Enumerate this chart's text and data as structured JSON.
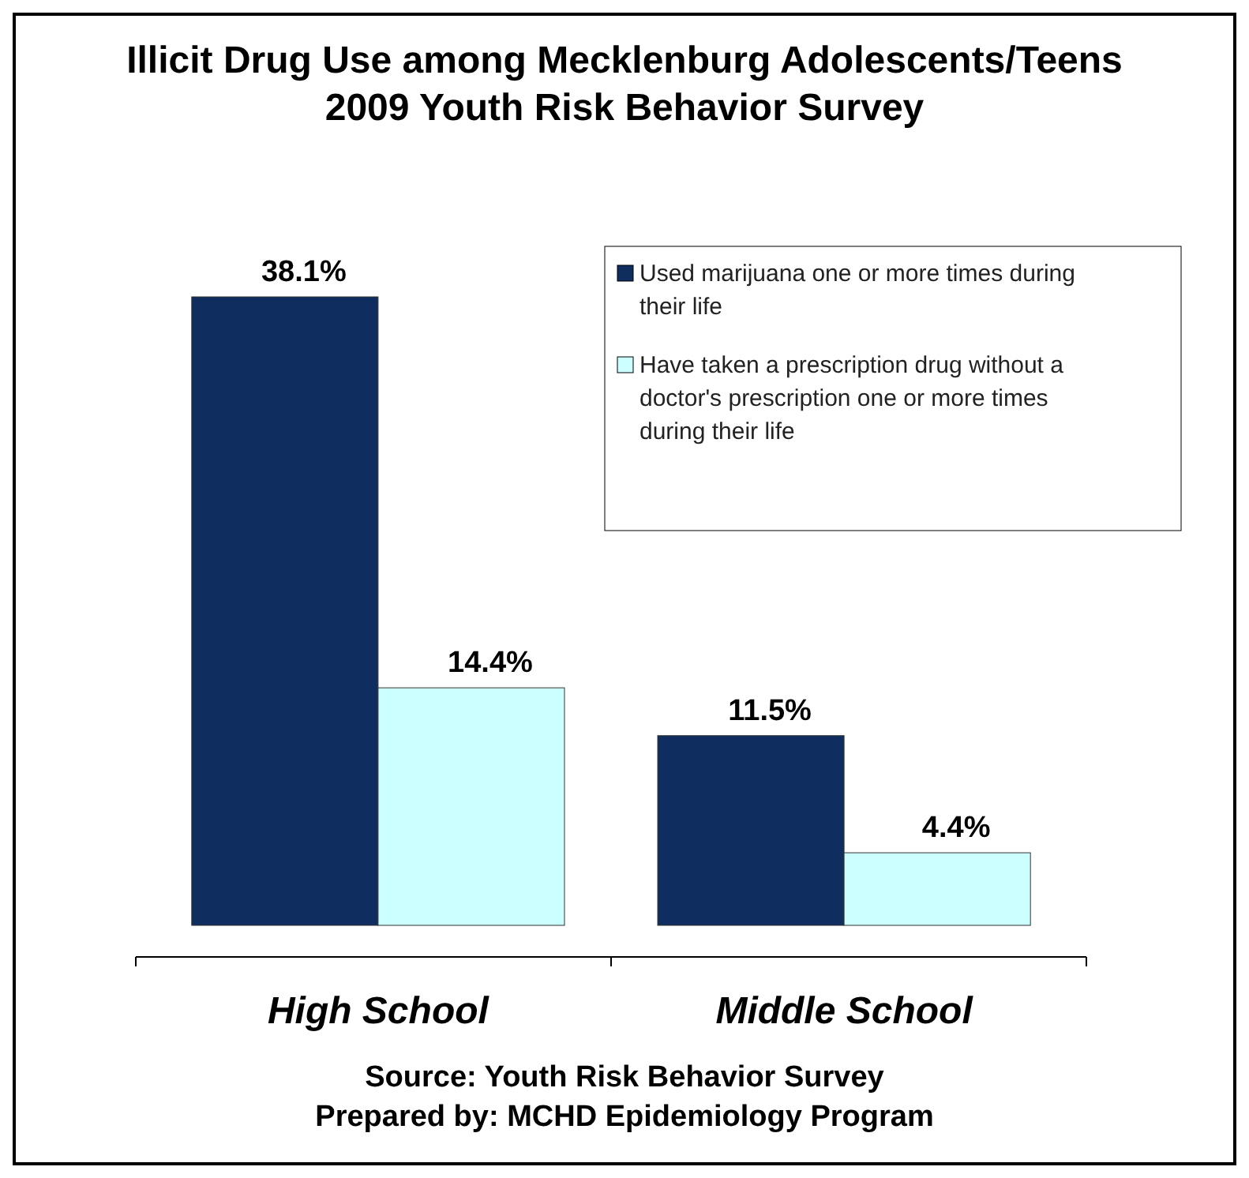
{
  "chart_data": {
    "type": "bar",
    "title": "Illicit Drug Use among Mecklenburg Adolescents/Teens\n2009 Youth Risk Behavior Survey",
    "categories": [
      "High School",
      "Middle School"
    ],
    "series": [
      {
        "name": "Used marijuana one or more times during their life",
        "color": "#0f2d5e",
        "values": [
          38.1,
          11.5
        ],
        "value_labels": [
          "38.1%",
          "11.5%"
        ]
      },
      {
        "name": "Have taken a prescription drug without a doctor's prescription one or more times during their life",
        "color": "#ccffff",
        "values": [
          14.4,
          4.4
        ],
        "value_labels": [
          "14.4%",
          "4.4%"
        ]
      }
    ],
    "legend": "top right",
    "grid": false,
    "annotations": [
      "Source: Youth Risk Behavior Survey",
      "Prepared by: MCHD Epidemiology Program"
    ]
  }
}
